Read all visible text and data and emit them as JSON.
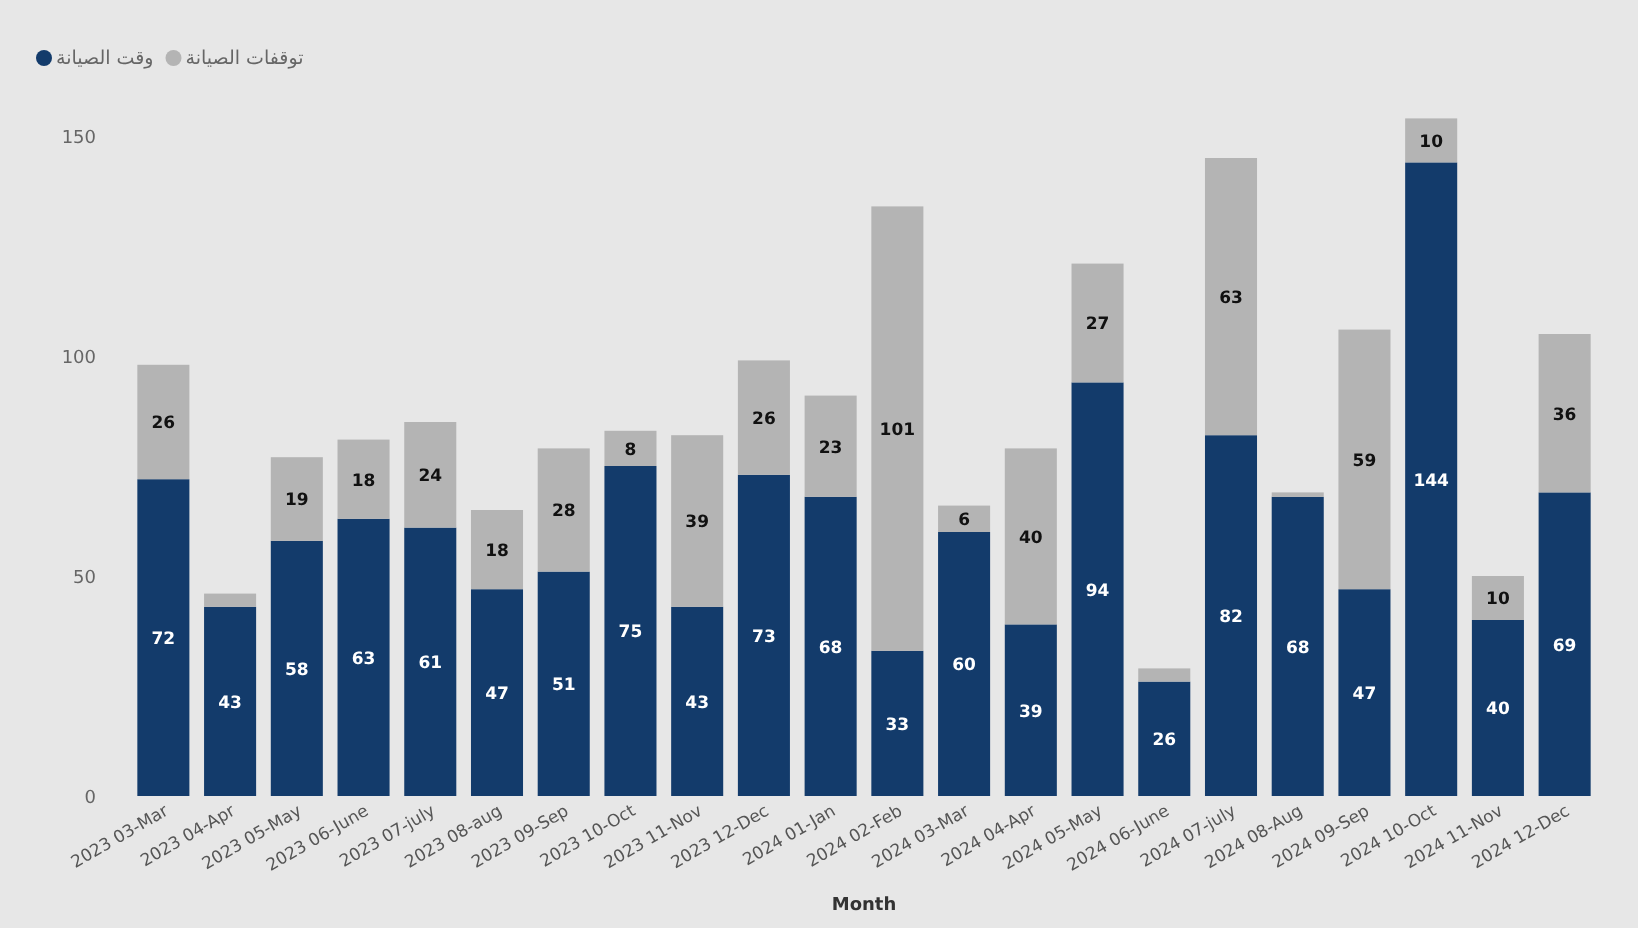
{
  "chart_data": {
    "type": "bar",
    "stacked": true,
    "categories": [
      "2023 03-Mar",
      "2023 04-Apr",
      "2023 05-May",
      "2023 06-June",
      "2023 07-july",
      "2023 08-aug",
      "2023 09-Sep",
      "2023 10-Oct",
      "2023 11-Nov",
      "2023 12-Dec",
      "2024 01-Jan",
      "2024 02-Feb",
      "2024 03-Mar",
      "2024 04-Apr",
      "2024 05-May",
      "2024 06-June",
      "2024 07-july",
      "2024 08-Aug",
      "2024 09-Sep",
      "2024 10-Oct",
      "2024 11-Nov",
      "2024 12-Dec"
    ],
    "series": [
      {
        "name": "وقت الصيانة",
        "color": "#133b6b",
        "values": [
          72,
          43,
          58,
          63,
          61,
          47,
          51,
          75,
          43,
          73,
          68,
          33,
          60,
          39,
          94,
          26,
          82,
          68,
          47,
          144,
          40,
          69
        ],
        "value_labels": [
          "72",
          "43",
          "58",
          "63",
          "61",
          "47",
          "51",
          "75",
          "43",
          "73",
          "68",
          "33",
          "60",
          "39",
          "94",
          "26",
          "82",
          "68",
          "47",
          "144",
          "40",
          "69"
        ]
      },
      {
        "name": "توقفات الصيانة",
        "color": "#b4b4b4",
        "values": [
          26,
          3,
          19,
          18,
          24,
          18,
          28,
          8,
          39,
          26,
          23,
          101,
          6,
          40,
          27,
          3,
          63,
          1,
          59,
          10,
          10,
          36
        ],
        "value_labels": [
          "26",
          null,
          "19",
          "18",
          "24",
          "18",
          "28",
          "8",
          "39",
          "26",
          "23",
          "101",
          "6",
          "40",
          "27",
          null,
          "63",
          null,
          "59",
          "10",
          "10",
          "36"
        ]
      }
    ],
    "xlabel": "Month",
    "ylim": [
      0,
      155
    ],
    "yticks": [
      0,
      50,
      100,
      150
    ],
    "legend": "top left",
    "grid": false
  }
}
